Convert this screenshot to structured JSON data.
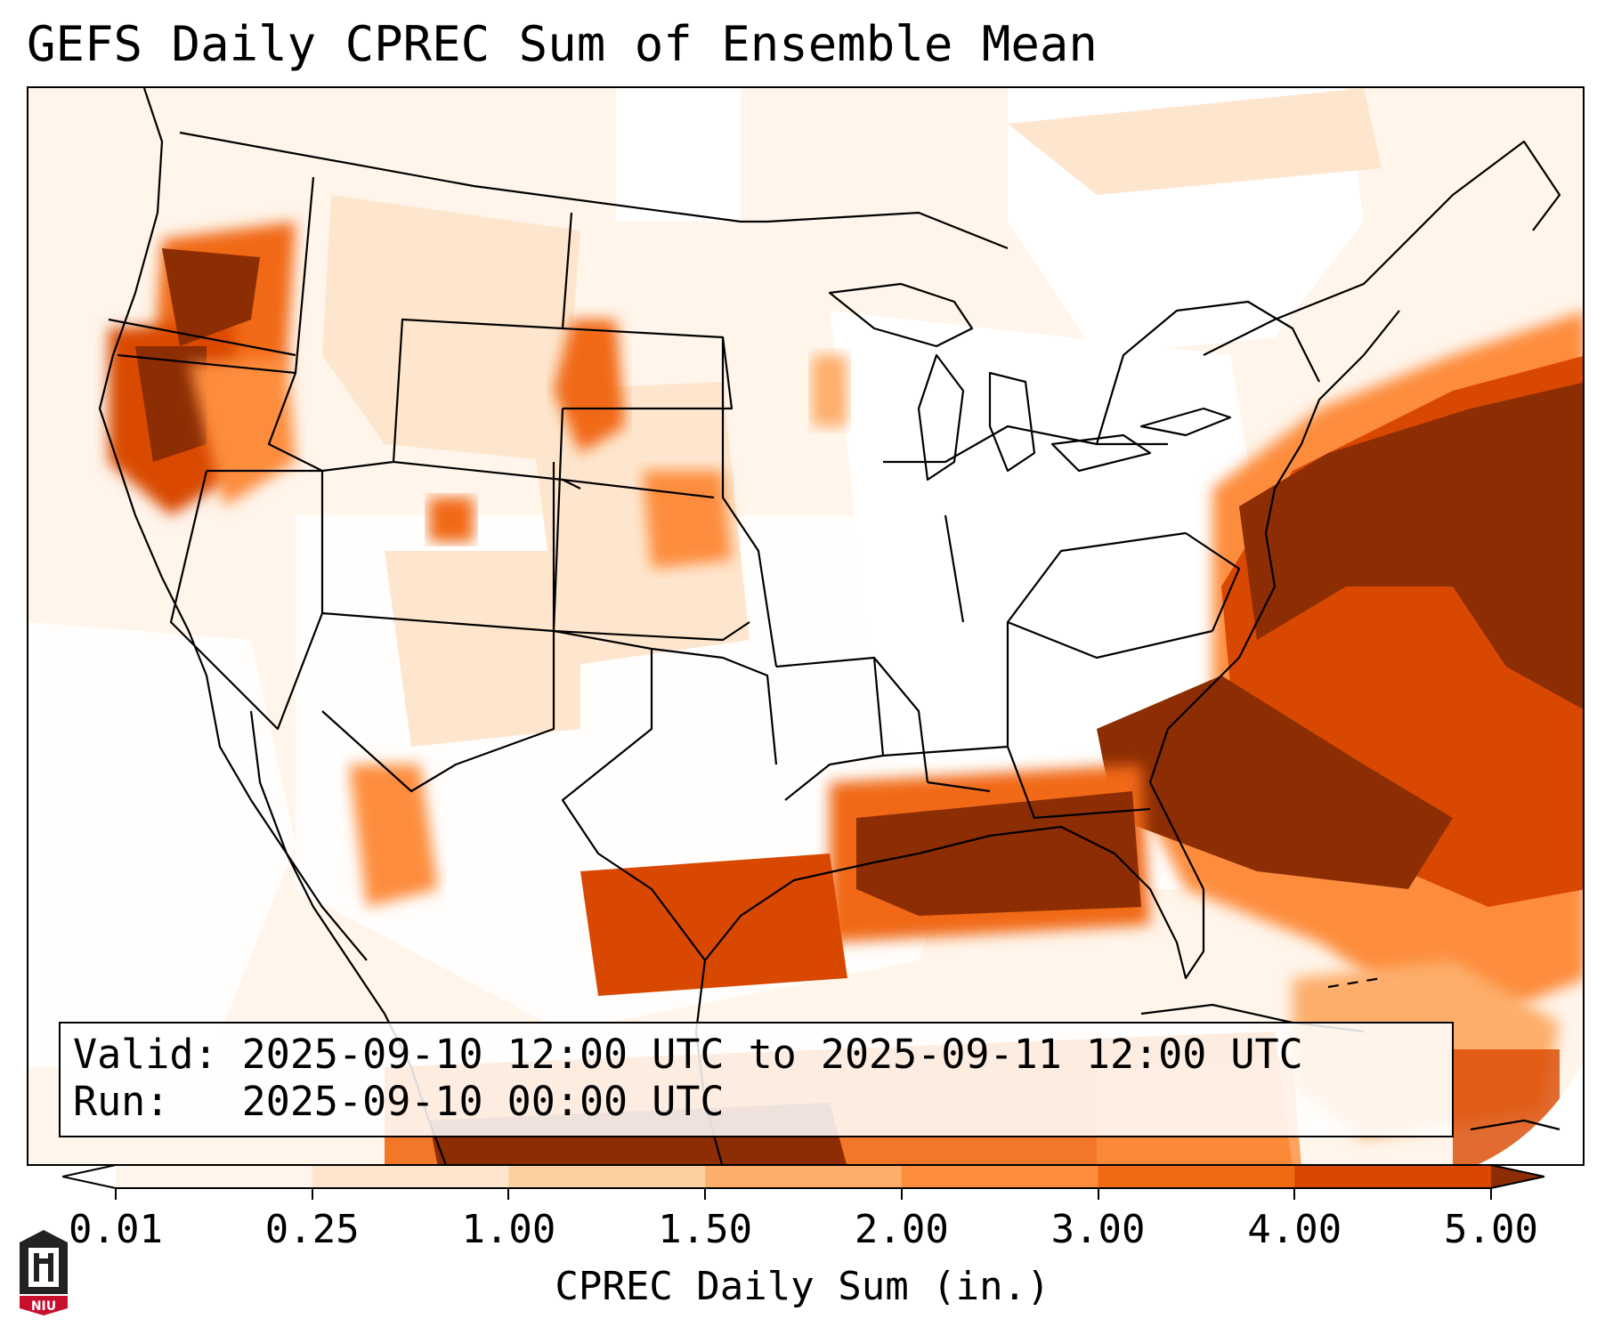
{
  "title": "GEFS Daily CPREC Sum of Ensemble Mean",
  "valid_line": "Valid: 2025-09-10 12:00 UTC to 2025-09-11 12:00 UTC",
  "run_line": "Run:   2025-09-10 00:00 UTC",
  "colorbar": {
    "label": "CPREC Daily Sum (in.)",
    "ticks": [
      "0.01",
      "0.25",
      "1.00",
      "1.50",
      "2.00",
      "3.00",
      "4.00",
      "5.00"
    ],
    "colors": [
      "#fff5eb",
      "#fee6ce",
      "#fdd0a2",
      "#fdae6b",
      "#fd8d3c",
      "#f16913",
      "#d94801",
      "#8c2d04"
    ]
  },
  "logo": {
    "text": "NIU",
    "color": "#c8102e"
  }
}
